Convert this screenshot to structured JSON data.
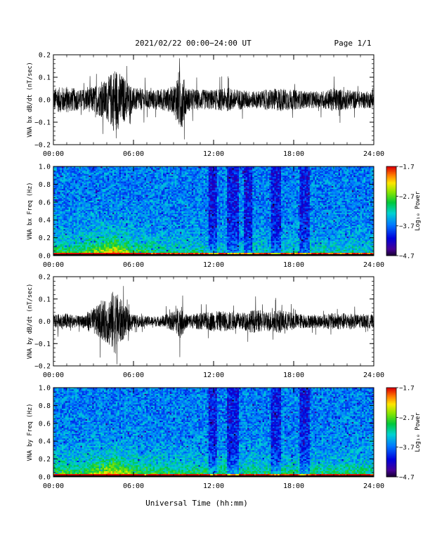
{
  "header": {
    "date_range": "2021/02/22  00:00−24:00 UT",
    "page": "Page 1/1"
  },
  "footer": {
    "xlabel": "Universal Time (hh:mm)"
  },
  "chart_data": [
    {
      "type": "line",
      "ylabel": "VNA bx dB/dt (nT/sec)",
      "ylim": [
        -0.2,
        0.2
      ],
      "yticks": [
        "0.2",
        "0.1",
        "0.0",
        "−0.1",
        "−0.2"
      ],
      "ytick_values": [
        0.2,
        0.1,
        0.0,
        -0.1,
        -0.2
      ],
      "xlim": [
        0,
        24
      ],
      "xticks": [
        "00:00",
        "06:00",
        "12:00",
        "18:00",
        "24:00"
      ],
      "xtick_values": [
        0,
        6,
        12,
        18,
        24
      ],
      "series": [
        {
          "envelope_hours": [
            0,
            1,
            2,
            3,
            4,
            4.6,
            5,
            5.5,
            6,
            7,
            8,
            9,
            9.5,
            10,
            11,
            12,
            13,
            14,
            15,
            16,
            17,
            18,
            19,
            20,
            21,
            22,
            23,
            24
          ],
          "envelope_amplitude": [
            0.07,
            0.08,
            0.06,
            0.08,
            0.12,
            0.2,
            0.16,
            0.12,
            0.07,
            0.06,
            0.06,
            0.08,
            0.2,
            0.07,
            0.06,
            0.06,
            0.07,
            0.06,
            0.05,
            0.06,
            0.07,
            0.06,
            0.05,
            0.05,
            0.07,
            0.06,
            0.05,
            0.05
          ],
          "color": "#000000"
        }
      ]
    },
    {
      "type": "heatmap",
      "ylabel": "VNA bx Freq (Hz)",
      "ylim": [
        0.0,
        1.0
      ],
      "yticks": [
        "1.0",
        "0.8",
        "0.6",
        "0.4",
        "0.2",
        "0.0"
      ],
      "ytick_values": [
        1.0,
        0.8,
        0.6,
        0.4,
        0.2,
        0.0
      ],
      "xlim": [
        0,
        24
      ],
      "xticks": [
        "00:00",
        "06:00",
        "12:00",
        "18:00",
        "24:00"
      ],
      "xtick_values": [
        0,
        6,
        12,
        18,
        24
      ],
      "colorbar": {
        "label": "Log₁₀ Power",
        "ticks": [
          "−1.7",
          "−2.7",
          "−3.7",
          "−4.7"
        ],
        "tick_values": [
          -1.7,
          -2.7,
          -3.7,
          -4.7
        ]
      },
      "activity_hours": [
        0,
        2,
        3.5,
        4.6,
        6,
        8,
        10,
        12,
        14,
        16,
        18,
        20,
        22,
        24
      ],
      "activity_level": [
        0.35,
        0.35,
        0.55,
        0.7,
        0.4,
        0.25,
        0.25,
        0.2,
        0.2,
        0.2,
        0.2,
        0.2,
        0.2,
        0.2
      ],
      "dark_bands_hours": [
        [
          11.6,
          12.2
        ],
        [
          13.0,
          13.9
        ],
        [
          14.3,
          14.9
        ],
        [
          16.3,
          17.0
        ],
        [
          18.5,
          19.2
        ]
      ]
    },
    {
      "type": "line",
      "ylabel": "VNA by dB/dt (nT/sec)",
      "ylim": [
        -0.2,
        0.2
      ],
      "yticks": [
        "0.2",
        "0.1",
        "0.0",
        "−0.1",
        "−0.2"
      ],
      "ytick_values": [
        0.2,
        0.1,
        0.0,
        -0.1,
        -0.2
      ],
      "xlim": [
        0,
        24
      ],
      "xticks": [
        "00:00",
        "06:00",
        "12:00",
        "18:00",
        "24:00"
      ],
      "xtick_values": [
        0,
        6,
        12,
        18,
        24
      ],
      "series": [
        {
          "envelope_hours": [
            0,
            1,
            2,
            3,
            4,
            4.6,
            5,
            5.5,
            6,
            7,
            8,
            9,
            9.5,
            10,
            11,
            12,
            13,
            14,
            15,
            16,
            17,
            18,
            19,
            20,
            21,
            22,
            23,
            24
          ],
          "envelope_amplitude": [
            0.04,
            0.05,
            0.03,
            0.08,
            0.13,
            0.2,
            0.14,
            0.08,
            0.04,
            0.03,
            0.03,
            0.06,
            0.1,
            0.04,
            0.05,
            0.06,
            0.06,
            0.05,
            0.07,
            0.06,
            0.07,
            0.05,
            0.04,
            0.04,
            0.05,
            0.05,
            0.04,
            0.04
          ],
          "color": "#000000"
        }
      ]
    },
    {
      "type": "heatmap",
      "ylabel": "VNA by Freq (Hz)",
      "ylim": [
        0.0,
        1.0
      ],
      "yticks": [
        "1.0",
        "0.8",
        "0.6",
        "0.4",
        "0.2",
        "0.0"
      ],
      "ytick_values": [
        1.0,
        0.8,
        0.6,
        0.4,
        0.2,
        0.0
      ],
      "xlim": [
        0,
        24
      ],
      "xticks": [
        "00:00",
        "06:00",
        "12:00",
        "18:00",
        "24:00"
      ],
      "xtick_values": [
        0,
        6,
        12,
        18,
        24
      ],
      "colorbar": {
        "label": "Log₁₀ Power",
        "ticks": [
          "−1.7",
          "−2.7",
          "−3.7",
          "−4.7"
        ],
        "tick_values": [
          -1.7,
          -2.7,
          -3.7,
          -4.7
        ]
      },
      "activity_hours": [
        0,
        2,
        3.5,
        4.6,
        6,
        8,
        10,
        12,
        14,
        16,
        18,
        20,
        22,
        24
      ],
      "activity_level": [
        0.4,
        0.4,
        0.55,
        0.7,
        0.45,
        0.35,
        0.35,
        0.3,
        0.3,
        0.3,
        0.3,
        0.3,
        0.3,
        0.3
      ],
      "dark_bands_hours": [
        [
          11.6,
          12.2
        ],
        [
          13.0,
          13.9
        ],
        [
          16.3,
          17.0
        ],
        [
          18.5,
          19.2
        ]
      ]
    }
  ]
}
